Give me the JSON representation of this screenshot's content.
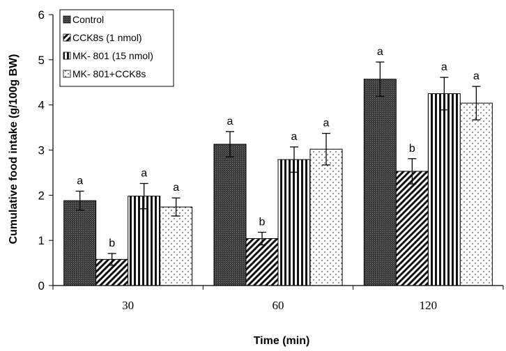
{
  "chart_data": {
    "type": "bar",
    "xlabel": "Time (min)",
    "ylabel": "Cumulative food intake (g/100g BW)",
    "ylim": [
      0,
      6
    ],
    "yticks": [
      0,
      1,
      2,
      3,
      4,
      5,
      6
    ],
    "categories": [
      "30",
      "60",
      "120"
    ],
    "legend_position": "top-left",
    "grid": false,
    "series": [
      {
        "name": "Control",
        "values": [
          1.88,
          3.13,
          4.57
        ],
        "errors": [
          0.21,
          0.28,
          0.38
        ],
        "labels": [
          "a",
          "a",
          "a"
        ],
        "pattern": "dark-stipple"
      },
      {
        "name": "CCK8s (1 nmol)",
        "values": [
          0.58,
          1.04,
          2.53
        ],
        "errors": [
          0.13,
          0.14,
          0.28
        ],
        "labels": [
          "b",
          "b",
          "b"
        ],
        "pattern": "diagonal"
      },
      {
        "name": "MK- 801 (15 nmol)",
        "values": [
          1.98,
          2.79,
          4.25
        ],
        "errors": [
          0.28,
          0.28,
          0.36
        ],
        "labels": [
          "a",
          "a",
          "a"
        ],
        "pattern": "vertical"
      },
      {
        "name": "MK- 801+CCK8s",
        "values": [
          1.74,
          3.02,
          4.04
        ],
        "errors": [
          0.2,
          0.35,
          0.37
        ],
        "labels": [
          "a",
          "a",
          "a"
        ],
        "pattern": "dots"
      }
    ]
  }
}
